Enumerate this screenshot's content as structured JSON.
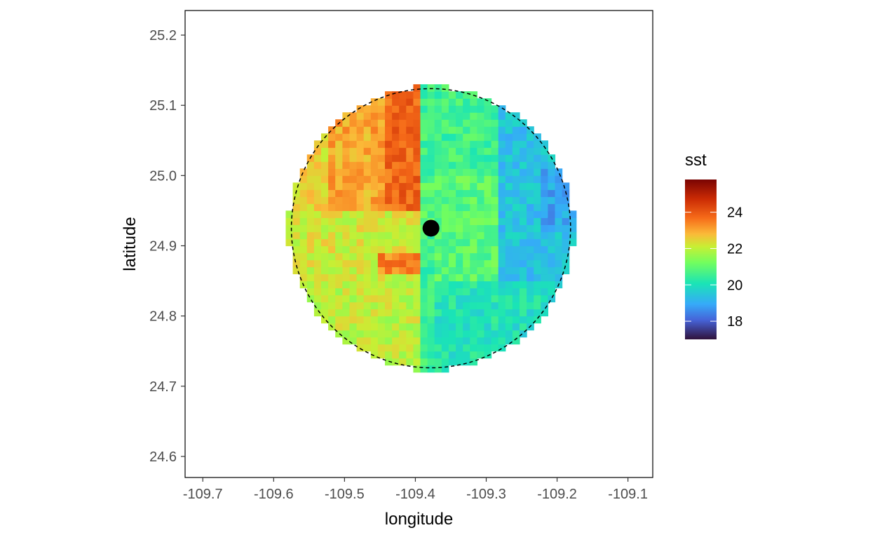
{
  "chart_data": {
    "type": "heatmap",
    "title": "",
    "xlabel": "longitude",
    "ylabel": "latitude",
    "xlim": [
      -109.725,
      -109.065
    ],
    "ylim": [
      24.57,
      25.235
    ],
    "x_ticks": [
      -109.7,
      -109.6,
      -109.5,
      -109.4,
      -109.3,
      -109.2,
      -109.1
    ],
    "x_tick_labels": [
      "-109.7",
      "-109.6",
      "-109.5",
      "-109.4",
      "-109.3",
      "-109.2",
      "-109.1"
    ],
    "y_ticks": [
      24.6,
      24.7,
      24.8,
      24.9,
      25.0,
      25.1,
      25.2
    ],
    "y_tick_labels": [
      "24.6",
      "24.7",
      "24.8",
      "24.9",
      "25.0",
      "25.1",
      "25.2"
    ],
    "grid": false,
    "point": {
      "lon": -109.378,
      "lat": 24.925
    },
    "circle": {
      "center_lon": -109.378,
      "center_lat": 24.925,
      "radius_deg": 0.197,
      "linestyle": "dashed"
    },
    "grid_cells": {
      "cell_size_deg": 0.01
    },
    "fill_legend": {
      "title": "sst",
      "position": "right",
      "colormap": "turbo",
      "range": [
        17.0,
        25.8
      ],
      "breaks": [
        18,
        20,
        22,
        24
      ],
      "break_labels": [
        "18",
        "20",
        "22",
        "24"
      ]
    },
    "sst_field": {
      "description_regions": [
        {
          "region": "northwest (lon < -109.39, lat > 24.95)",
          "sst": 23.2
        },
        {
          "region": "far north-west band near -109.42",
          "sst": 23.8
        },
        {
          "region": "west (lon < -109.39, lat 24.85-24.95)",
          "sst": 22.2
        },
        {
          "region": "southwest (lon < -109.39, lat < 24.85)",
          "sst": 22.0
        },
        {
          "region": "north-center (lon -109.39 to -109.28, lat > 25.0)",
          "sst": 20.6
        },
        {
          "region": "center (lon -109.39 to -109.28, lat 24.85-25.0)",
          "sst": 20.9
        },
        {
          "region": "south-center (lon -109.37 to -109.25, lat < 24.85)",
          "sst": 20.1
        },
        {
          "region": "east (lon > -109.28, lat > 24.85)",
          "sst": 19.4
        },
        {
          "region": "far east edge (lon > -109.22, lat 24.92-25.0)",
          "sst": 18.9
        },
        {
          "region": "south-east (lon > -109.28, lat < 24.85)",
          "sst": 20.0
        }
      ]
    }
  }
}
